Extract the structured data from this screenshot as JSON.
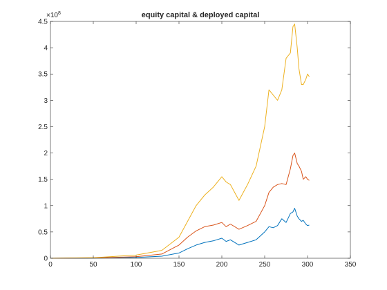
{
  "chart_data": {
    "type": "line",
    "title": "equity capital & deployed capital",
    "xlabel": "",
    "ylabel": "",
    "xlim": [
      0,
      350
    ],
    "ylim": [
      0,
      450000000
    ],
    "x_ticks": [
      0,
      50,
      100,
      150,
      200,
      250,
      300,
      350
    ],
    "y_ticks": [
      0,
      50000000,
      100000000,
      150000000,
      200000000,
      250000000,
      300000000,
      350000000,
      400000000,
      450000000
    ],
    "y_tick_labels": [
      "0",
      "0.5",
      "1",
      "1.5",
      "2",
      "2.5",
      "3",
      "3.5",
      "4",
      "4.5"
    ],
    "y_exponent_base": "×10",
    "y_exponent_power": "8",
    "grid": false,
    "colors": [
      "#0072BD",
      "#D95319",
      "#EDB120"
    ],
    "series": [
      {
        "x": [
          0,
          50,
          100,
          130,
          150,
          160,
          170,
          180,
          190,
          200,
          205,
          210,
          220,
          230,
          240,
          250,
          255,
          260,
          265,
          270,
          275,
          280,
          283,
          285,
          288,
          290,
          293,
          295,
          298,
          300,
          302
        ],
        "values": [
          0,
          200000,
          1500000,
          4000000,
          10000000,
          18000000,
          25000000,
          30000000,
          33000000,
          38000000,
          32000000,
          35000000,
          25000000,
          30000000,
          35000000,
          50000000,
          60000000,
          58000000,
          62000000,
          75000000,
          68000000,
          85000000,
          88000000,
          95000000,
          80000000,
          75000000,
          70000000,
          72000000,
          65000000,
          62000000,
          63000000
        ]
      },
      {
        "x": [
          0,
          50,
          100,
          130,
          150,
          160,
          170,
          180,
          190,
          200,
          205,
          210,
          220,
          230,
          240,
          250,
          255,
          260,
          265,
          270,
          275,
          280,
          283,
          285,
          288,
          290,
          293,
          295,
          298,
          300,
          302
        ],
        "values": [
          0,
          500000,
          3000000,
          8000000,
          25000000,
          40000000,
          52000000,
          60000000,
          63000000,
          68000000,
          60000000,
          65000000,
          55000000,
          62000000,
          70000000,
          100000000,
          125000000,
          135000000,
          140000000,
          142000000,
          140000000,
          170000000,
          195000000,
          200000000,
          180000000,
          175000000,
          165000000,
          150000000,
          155000000,
          150000000,
          148000000
        ]
      },
      {
        "x": [
          0,
          50,
          100,
          130,
          150,
          160,
          170,
          180,
          190,
          200,
          205,
          210,
          220,
          230,
          240,
          250,
          255,
          260,
          265,
          270,
          275,
          280,
          283,
          285,
          288,
          290,
          293,
          295,
          298,
          300,
          302
        ],
        "values": [
          0,
          1000000,
          6000000,
          15000000,
          40000000,
          70000000,
          100000000,
          120000000,
          135000000,
          155000000,
          145000000,
          140000000,
          110000000,
          140000000,
          175000000,
          250000000,
          320000000,
          310000000,
          300000000,
          320000000,
          380000000,
          390000000,
          440000000,
          445000000,
          400000000,
          360000000,
          330000000,
          330000000,
          340000000,
          350000000,
          345000000
        ]
      }
    ]
  }
}
